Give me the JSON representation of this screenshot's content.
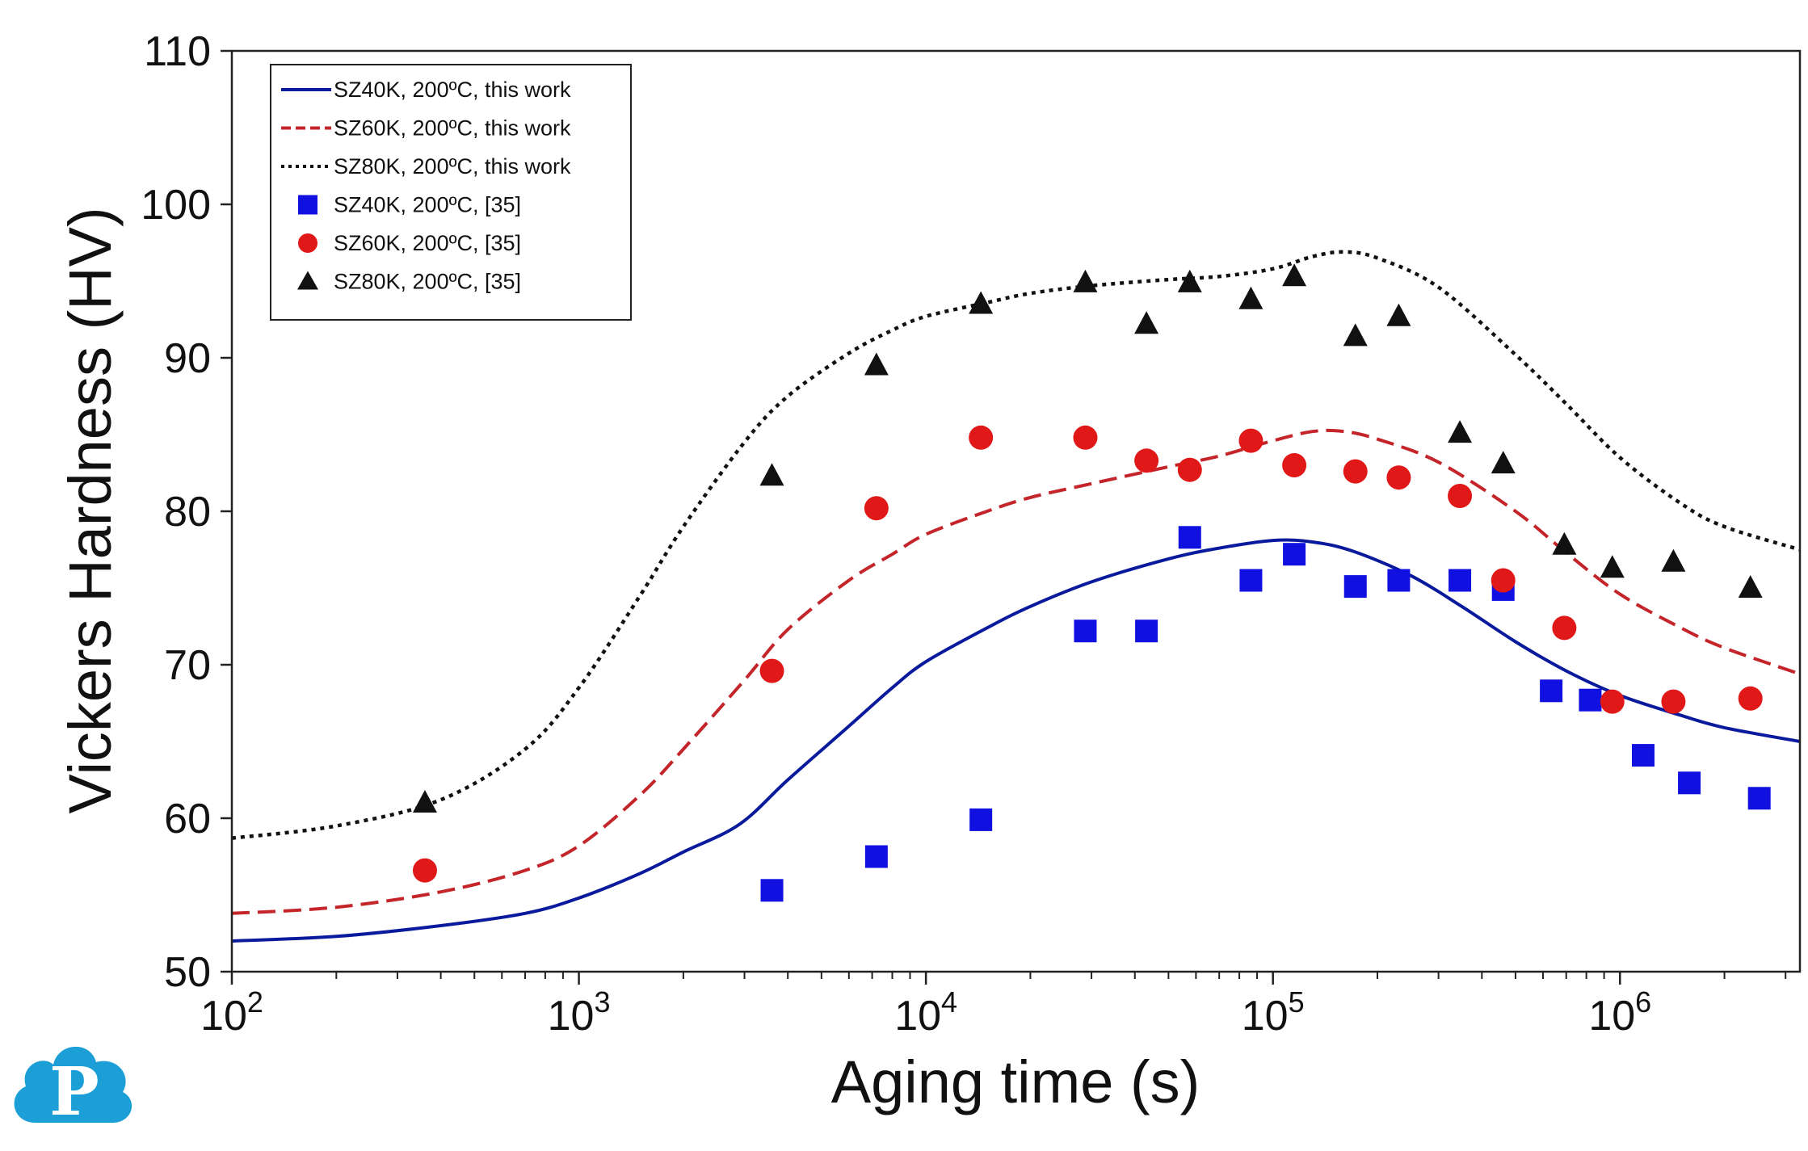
{
  "chart_data": {
    "type": "scatter",
    "title": "",
    "xlabel": "Aging time (s)",
    "ylabel": "Vickers Hardness (HV)",
    "xscale": "log",
    "xlim": [
      100,
      3300000
    ],
    "ylim": [
      50,
      110
    ],
    "yticks": [
      50,
      60,
      70,
      80,
      90,
      100,
      110
    ],
    "xticks": [
      {
        "value": 100,
        "base": "10",
        "exp": "2"
      },
      {
        "value": 1000,
        "base": "10",
        "exp": "3"
      },
      {
        "value": 10000,
        "base": "10",
        "exp": "4"
      },
      {
        "value": 100000,
        "base": "10",
        "exp": "5"
      },
      {
        "value": 1000000,
        "base": "10",
        "exp": "6"
      }
    ],
    "legend_position": "top-left",
    "series": [
      {
        "name": "SZ40K, 200ºC, this work",
        "kind": "line",
        "style": "solid",
        "color": "#0a1a9c",
        "x": [
          100,
          200,
          400,
          700,
          1000,
          1500,
          2000,
          2900,
          4000,
          6000,
          8000,
          10000,
          15000,
          20000,
          30000,
          50000,
          70000,
          100000,
          130000,
          170000,
          250000,
          350000,
          500000,
          700000,
          1000000,
          1500000,
          2000000,
          3300000
        ],
        "y": [
          52,
          52.3,
          53,
          53.8,
          54.8,
          56.4,
          57.8,
          59.6,
          62.5,
          66,
          68.5,
          70.2,
          72.4,
          73.8,
          75.4,
          76.9,
          77.6,
          78.1,
          78.0,
          77.4,
          75.8,
          73.8,
          71.5,
          69.6,
          68.0,
          66.7,
          65.9,
          65.0
        ]
      },
      {
        "name": "SZ60K, 200ºC, this work",
        "kind": "line",
        "style": "dashed",
        "color": "#c4252a",
        "x": [
          100,
          200,
          400,
          700,
          1000,
          1500,
          2000,
          3000,
          4000,
          6000,
          8000,
          10000,
          15000,
          20000,
          30000,
          50000,
          70000,
          100000,
          130000,
          160000,
          200000,
          300000,
          500000,
          700000,
          1000000,
          1500000,
          2000000,
          3300000
        ],
        "y": [
          53.8,
          54.2,
          55.2,
          56.6,
          58.2,
          61.5,
          64.5,
          69,
          72.3,
          75.5,
          77.2,
          78.5,
          80,
          80.9,
          81.8,
          82.9,
          83.6,
          84.6,
          85.2,
          85.2,
          84.7,
          83.2,
          80.0,
          77.3,
          74.6,
          72.4,
          71.1,
          69.4
        ]
      },
      {
        "name": "SZ80K, 200ºC, this work",
        "kind": "line",
        "style": "dotted",
        "color": "#111111",
        "x": [
          100,
          200,
          400,
          700,
          1000,
          1500,
          2000,
          3000,
          4000,
          6000,
          8000,
          10000,
          15000,
          20000,
          30000,
          50000,
          70000,
          100000,
          130000,
          160000,
          200000,
          300000,
          500000,
          700000,
          1000000,
          1500000,
          2000000,
          3300000
        ],
        "y": [
          58.7,
          59.5,
          61.2,
          64.5,
          68.5,
          74.5,
          79,
          84.5,
          87.5,
          90.3,
          91.8,
          92.7,
          93.6,
          94.2,
          94.7,
          95.1,
          95.3,
          95.8,
          96.6,
          96.9,
          96.5,
          94.6,
          90.2,
          87.0,
          83.5,
          80.5,
          79.0,
          77.5
        ]
      },
      {
        "name": "SZ40K, 200ºC, [35]",
        "kind": "scatter",
        "marker": "square",
        "color": "#1010e0",
        "x": [
          360,
          3600,
          7200,
          14400,
          28800,
          43200,
          57600,
          86400,
          115200,
          172800,
          230400,
          345600,
          460800,
          633600,
          820800,
          1166400,
          1584000,
          2520000
        ],
        "y": [
          null,
          55.3,
          57.5,
          59.9,
          72.2,
          72.2,
          78.3,
          75.5,
          77.2,
          75.1,
          75.5,
          75.5,
          74.9,
          68.3,
          67.7,
          64.1,
          62.3,
          61.3
        ]
      },
      {
        "name": "SZ60K, 200ºC, [35]",
        "kind": "scatter",
        "marker": "circle",
        "color": "#e01818",
        "x": [
          360,
          3600,
          7200,
          14400,
          28800,
          43200,
          57600,
          86400,
          115200,
          172800,
          230400,
          345600,
          460800,
          691200,
          950400,
          1425600,
          2376000
        ],
        "y": [
          56.6,
          69.6,
          80.2,
          84.8,
          84.8,
          83.3,
          82.7,
          84.6,
          83.0,
          82.6,
          82.2,
          81.0,
          75.5,
          72.4,
          67.6,
          67.6,
          67.8
        ]
      },
      {
        "name": "SZ80K, 200ºC, [35]",
        "kind": "scatter",
        "marker": "triangle",
        "color": "#111111",
        "x": [
          360,
          3600,
          7200,
          14400,
          28800,
          43200,
          57600,
          86400,
          115200,
          172800,
          230400,
          345600,
          460800,
          691200,
          950400,
          1425600,
          2376000
        ],
        "y": [
          61.0,
          82.3,
          89.5,
          93.5,
          94.9,
          92.2,
          94.9,
          93.8,
          95.3,
          91.4,
          92.7,
          85.1,
          83.1,
          77.8,
          76.3,
          76.7,
          75.0
        ]
      }
    ]
  },
  "logo": {
    "letter": "P"
  }
}
